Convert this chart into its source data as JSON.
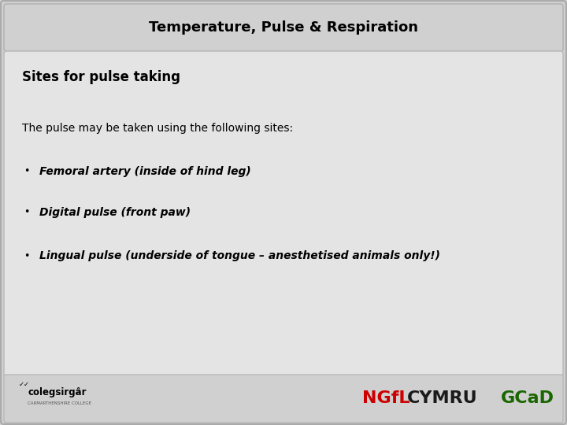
{
  "title": "Temperature, Pulse & Respiration",
  "subtitle": "Sites for pulse taking",
  "intro_text": "The pulse may be taken using the following sites:",
  "bullet_points": [
    "Femoral artery (inside of hind leg)",
    "Digital pulse (front paw)",
    "Lingual pulse (underside of tongue – anesthetised animals only!)"
  ],
  "bg_color": "#d0d0d0",
  "header_bg_color": "#d0d0d0",
  "content_bg_color": "#e4e4e4",
  "title_fontsize": 13,
  "subtitle_fontsize": 12,
  "body_fontsize": 10,
  "bullet_fontsize": 10,
  "footer_text_left": "colegsirgâr",
  "footer_ngfl_color": "#cc0000",
  "footer_cymru_color": "#1a1a1a",
  "footer_gcad_color": "#1a6600",
  "footer_ngfl": "NGfL",
  "footer_cymru": "CYMRU",
  "footer_gcad": "GCaD"
}
